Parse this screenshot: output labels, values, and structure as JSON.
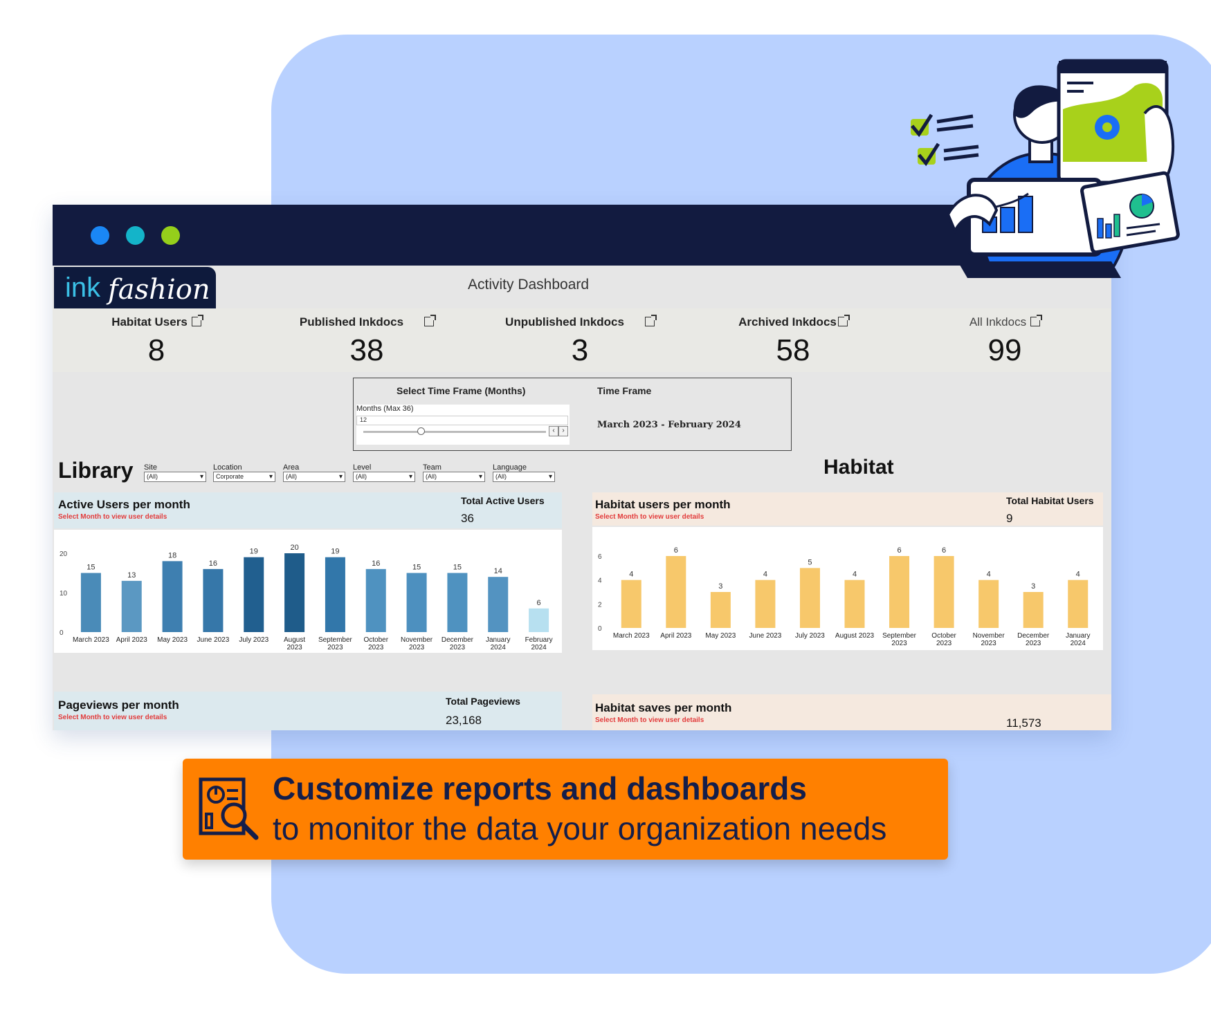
{
  "window": {
    "dots": [
      "#1a87f5",
      "#14b4c9",
      "#95cf1b"
    ]
  },
  "logo": {
    "ink": "ink",
    "fashion": "fashion"
  },
  "dashboard": {
    "title": "Activity Dashboard"
  },
  "kpis": [
    {
      "label": "Habitat Users",
      "value": "8"
    },
    {
      "label": "Published Inkdocs",
      "value": "38"
    },
    {
      "label": "Unpublished Inkdocs",
      "value": "3"
    },
    {
      "label": "Archived Inkdocs",
      "value": "58"
    },
    {
      "label": "All Inkdocs",
      "value": "99"
    }
  ],
  "timeframe": {
    "select_label": "Select Time Frame (Months)",
    "months_label": "Months (Max 36)",
    "months_value": "12",
    "timeframe_label": "Time Frame",
    "range": "March 2023 - February 2024"
  },
  "library": {
    "title": "Library",
    "filters": [
      {
        "label": "Site",
        "value": "(All)"
      },
      {
        "label": "Location",
        "value": "Corporate"
      },
      {
        "label": "Area",
        "value": "(All)"
      },
      {
        "label": "Level",
        "value": "(All)"
      },
      {
        "label": "Team",
        "value": "(All)"
      },
      {
        "label": "Language",
        "value": "(All)"
      }
    ],
    "active_users": {
      "title": "Active Users per month",
      "subtitle": "Select Month to view user details",
      "total_label": "Total Active Users",
      "total_value": "36"
    },
    "pageviews": {
      "title": "Pageviews per month",
      "subtitle": "Select Month to view user details",
      "total_label": "Total Pageviews",
      "total_value": "23,168"
    }
  },
  "habitat": {
    "title": "Habitat",
    "users": {
      "title": "Habitat users per month",
      "subtitle": "Select Month to view user details",
      "total_label": "Total Habitat Users",
      "total_value": "9"
    },
    "saves": {
      "title": "Habitat saves per month",
      "subtitle": "Select Month to view user details",
      "total_value": "11,573"
    }
  },
  "chart_data": [
    {
      "type": "bar",
      "title": "Active Users per month",
      "categories": [
        [
          "March 2023"
        ],
        [
          "April 2023"
        ],
        [
          "May 2023"
        ],
        [
          "June 2023"
        ],
        [
          "July 2023"
        ],
        [
          "August",
          "2023"
        ],
        [
          "September",
          "2023"
        ],
        [
          "October",
          "2023"
        ],
        [
          "November",
          "2023"
        ],
        [
          "December",
          "2023"
        ],
        [
          "January",
          "2024"
        ],
        [
          "February",
          "2024"
        ]
      ],
      "values": [
        15,
        13,
        18,
        16,
        19,
        20,
        19,
        16,
        15,
        15,
        14,
        6
      ],
      "colors": [
        "#4a8bb8",
        "#5b98c2",
        "#3e7fb0",
        "#3677a9",
        "#215f8f",
        "#1f5c8a",
        "#3277aa",
        "#4f92c0",
        "#4d90bf",
        "#4f92c0",
        "#5393c1",
        "#b7e0f0"
      ],
      "ylim": [
        0,
        20
      ],
      "yticks": [
        0,
        10,
        20
      ]
    },
    {
      "type": "bar",
      "title": "Habitat users per month",
      "categories": [
        [
          "March 2023"
        ],
        [
          "April 2023"
        ],
        [
          "May 2023"
        ],
        [
          "June 2023"
        ],
        [
          "July 2023"
        ],
        [
          "August 2023"
        ],
        [
          "September",
          "2023"
        ],
        [
          "October",
          "2023"
        ],
        [
          "November",
          "2023"
        ],
        [
          "December",
          "2023"
        ],
        [
          "January",
          "2024"
        ]
      ],
      "values": [
        4,
        6,
        3,
        4,
        5,
        4,
        6,
        6,
        4,
        3,
        4
      ],
      "colors": [
        "#f7c86b"
      ],
      "ylim": [
        0,
        6
      ],
      "yticks": [
        0,
        2,
        4,
        6
      ]
    }
  ],
  "banner": {
    "line1": "Customize reports and dashboards",
    "line2": "to monitor the data your organization needs",
    "icon": "report-search-icon"
  },
  "illustration": {
    "icon": "person-with-devices-illustration",
    "accent": "#1a6ef5",
    "highlight": "#a8d11b"
  }
}
